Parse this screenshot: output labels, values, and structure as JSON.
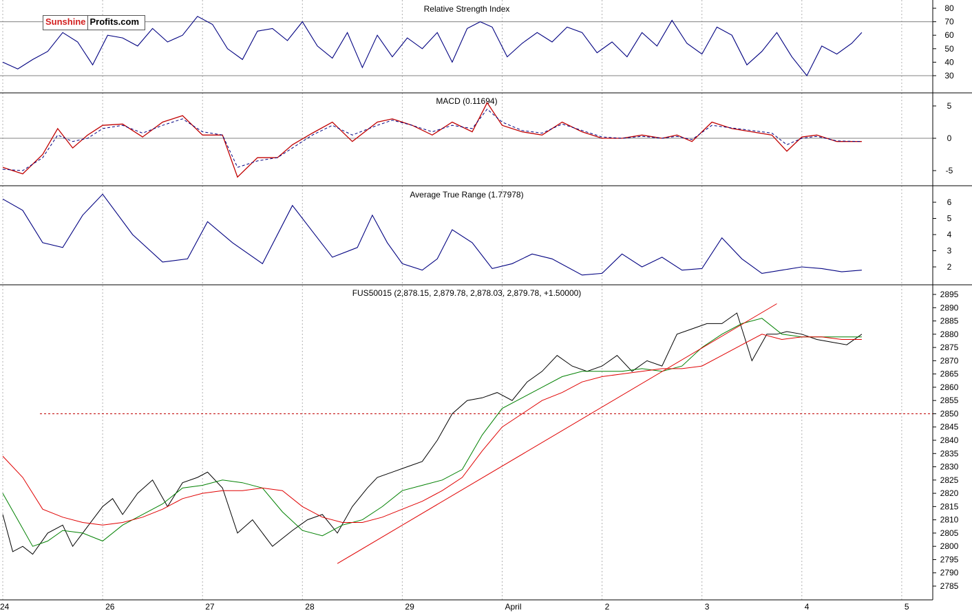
{
  "logo": {
    "part1": "Sunshine",
    "part2": "Profits.com"
  },
  "chart_data": [
    {
      "type": "line",
      "title": "Relative Strength Index",
      "yticks": [
        30,
        40,
        50,
        60,
        70,
        80
      ],
      "ylim": [
        18,
        84
      ],
      "reference_lines": [
        30,
        70
      ],
      "series": [
        {
          "x": [
            0,
            0.15,
            0.3,
            0.45,
            0.6,
            0.75,
            0.9,
            1.05,
            1.2,
            1.35,
            1.5,
            1.65,
            1.8,
            1.95,
            2.1,
            2.25,
            2.4,
            2.55,
            2.7,
            2.85,
            3,
            3.15,
            3.3,
            3.45,
            3.6,
            3.75,
            3.9,
            4.05,
            4.2,
            4.35,
            4.5,
            4.65,
            4.78,
            4.9,
            5.05,
            5.2,
            5.35,
            5.5,
            5.65,
            5.8,
            5.95,
            6.1,
            6.25,
            6.4,
            6.55,
            6.7,
            6.85,
            7,
            7.15,
            7.3,
            7.45,
            7.6,
            7.75,
            7.9,
            8.05,
            8.2,
            8.35,
            8.5,
            8.6
          ],
          "values": [
            40,
            35,
            42,
            48,
            62,
            55,
            38,
            60,
            58,
            52,
            65,
            55,
            60,
            74,
            68,
            50,
            42,
            63,
            65,
            56,
            70,
            52,
            43,
            62,
            36,
            60,
            44,
            58,
            50,
            62,
            40,
            65,
            70,
            66,
            44,
            54,
            62,
            55,
            66,
            62,
            47,
            55,
            44,
            62,
            52,
            71,
            54,
            46,
            66,
            60,
            38,
            48,
            62,
            44,
            30,
            52,
            46,
            54,
            62
          ]
        }
      ]
    },
    {
      "type": "line",
      "title": "MACD (0.11694)",
      "yticks": [
        -5,
        0,
        5
      ],
      "ylim": [
        -7,
        6
      ],
      "reference_lines": [
        0
      ],
      "series": [
        {
          "x": [
            0,
            0.2,
            0.4,
            0.55,
            0.7,
            0.85,
            1,
            1.2,
            1.4,
            1.6,
            1.8,
            2,
            2.2,
            2.35,
            2.55,
            2.75,
            2.9,
            3.1,
            3.3,
            3.5,
            3.75,
            3.9,
            4.1,
            4.3,
            4.5,
            4.7,
            4.85,
            5,
            5.2,
            5.4,
            5.6,
            5.8,
            6,
            6.2,
            6.4,
            6.6,
            6.75,
            6.9,
            7.1,
            7.3,
            7.5,
            7.7,
            7.85,
            8,
            8.15,
            8.35,
            8.6
          ],
          "values": [
            -4.5,
            -5.5,
            -2.5,
            1.5,
            -1.5,
            0.5,
            2,
            2.2,
            0.2,
            2.5,
            3.5,
            0.5,
            0.5,
            -6,
            -3,
            -3,
            -1,
            0.8,
            2.5,
            -0.5,
            2.5,
            3,
            2,
            0.5,
            2.5,
            1,
            5.5,
            2,
            1,
            0.5,
            2.5,
            1,
            0,
            0,
            0.5,
            0,
            0.5,
            -0.5,
            2.5,
            1.5,
            1,
            0.5,
            -2,
            0.2,
            0.5,
            -0.5,
            -0.5
          ]
        },
        {
          "x": [
            0,
            0.2,
            0.4,
            0.55,
            0.7,
            0.85,
            1,
            1.2,
            1.4,
            1.6,
            1.8,
            2,
            2.2,
            2.35,
            2.55,
            2.75,
            2.9,
            3.1,
            3.3,
            3.5,
            3.75,
            3.9,
            4.1,
            4.3,
            4.5,
            4.7,
            4.85,
            5,
            5.2,
            5.4,
            5.6,
            5.8,
            6,
            6.2,
            6.4,
            6.6,
            6.75,
            6.9,
            7.1,
            7.3,
            7.5,
            7.7,
            7.85,
            8,
            8.15,
            8.35,
            8.6
          ],
          "values": [
            -4.8,
            -5,
            -3,
            0.5,
            -0.5,
            0,
            1.5,
            2,
            0.8,
            2,
            3,
            1,
            0.5,
            -4.5,
            -3.5,
            -3,
            -1.5,
            0.5,
            2,
            0.5,
            2,
            2.8,
            2,
            1,
            2,
            1.5,
            4.5,
            2.5,
            1.2,
            0.8,
            2.2,
            1.2,
            0.2,
            0,
            0.3,
            0,
            0.3,
            -0.2,
            2,
            1.6,
            1.2,
            0.8,
            -1,
            0,
            0.3,
            -0.4,
            -0.5
          ]
        }
      ]
    },
    {
      "type": "line",
      "title": "Average True Range (1.77978)",
      "yticks": [
        2,
        3,
        4,
        5,
        6
      ],
      "ylim": [
        1,
        6.9
      ],
      "series": [
        {
          "x": [
            0,
            0.2,
            0.4,
            0.6,
            0.8,
            1,
            1.3,
            1.6,
            1.85,
            2.05,
            2.3,
            2.6,
            2.9,
            3.1,
            3.3,
            3.55,
            3.7,
            3.85,
            4,
            4.2,
            4.35,
            4.5,
            4.7,
            4.9,
            5.1,
            5.3,
            5.5,
            5.8,
            6,
            6.2,
            6.4,
            6.6,
            6.8,
            7,
            7.2,
            7.4,
            7.6,
            7.8,
            8,
            8.2,
            8.4,
            8.6
          ],
          "values": [
            6.2,
            5.5,
            3.5,
            3.2,
            5.2,
            6.5,
            4,
            2.3,
            2.5,
            4.8,
            3.5,
            2.2,
            5.8,
            4.2,
            2.6,
            3.2,
            5.2,
            3.5,
            2.2,
            1.8,
            2.5,
            4.3,
            3.5,
            1.9,
            2.2,
            2.8,
            2.5,
            1.5,
            1.6,
            2.8,
            2,
            2.6,
            1.8,
            1.9,
            3.8,
            2.5,
            1.6,
            1.8,
            2,
            1.9,
            1.7,
            1.8
          ]
        }
      ]
    },
    {
      "type": "line",
      "title": "FUS50015 (2,878.15, 2,879.78, 2,878.03, 2,879.78, +1.50000)",
      "categories": [
        "26",
        "27",
        "28",
        "29",
        "April",
        "2",
        "3",
        "4",
        "5"
      ],
      "yticks": [
        2785,
        2790,
        2795,
        2800,
        2805,
        2810,
        2815,
        2820,
        2825,
        2830,
        2835,
        2840,
        2845,
        2850,
        2855,
        2860,
        2865,
        2870,
        2875,
        2880,
        2885,
        2890,
        2895
      ],
      "ylim": [
        2780.8,
        2898
      ],
      "horizontal_line": 2850,
      "series": [
        {
          "x": [
            0,
            0.1,
            0.2,
            0.3,
            0.45,
            0.6,
            0.7,
            0.8,
            0.9,
            1,
            1.1,
            1.2,
            1.35,
            1.5,
            1.65,
            1.8,
            1.95,
            2.05,
            2.2,
            2.35,
            2.5,
            2.7,
            2.9,
            3.05,
            3.2,
            3.35,
            3.5,
            3.65,
            3.75,
            3.9,
            4.05,
            4.2,
            4.35,
            4.5,
            4.65,
            4.8,
            4.95,
            5.1,
            5.25,
            5.4,
            5.55,
            5.7,
            5.85,
            6,
            6.15,
            6.3,
            6.45,
            6.6,
            6.75,
            6.9,
            7.05,
            7.2,
            7.35,
            7.5,
            7.65,
            7.75,
            7.85,
            8,
            8.15,
            8.3,
            8.45,
            8.6
          ],
          "values": [
            2812,
            2798,
            2800,
            2797,
            2805,
            2808,
            2800,
            2805,
            2810,
            2815,
            2818,
            2812,
            2820,
            2825,
            2815,
            2824,
            2826,
            2828,
            2822,
            2805,
            2810,
            2800,
            2806,
            2810,
            2812,
            2805,
            2815,
            2822,
            2826,
            2828,
            2830,
            2832,
            2840,
            2850,
            2855,
            2856,
            2858,
            2855,
            2862,
            2866,
            2872,
            2868,
            2866,
            2868,
            2872,
            2866,
            2870,
            2868,
            2880,
            2882,
            2884,
            2884,
            2888,
            2870,
            2880,
            2880,
            2881,
            2880,
            2878,
            2877,
            2876,
            2880
          ]
        },
        {
          "x": [
            0,
            0.15,
            0.3,
            0.45,
            0.6,
            0.8,
            1,
            1.2,
            1.4,
            1.6,
            1.8,
            2,
            2.2,
            2.4,
            2.6,
            2.8,
            3,
            3.2,
            3.4,
            3.6,
            3.8,
            4,
            4.2,
            4.4,
            4.6,
            4.8,
            5,
            5.2,
            5.4,
            5.6,
            5.8,
            6,
            6.2,
            6.4,
            6.6,
            6.8,
            7,
            7.2,
            7.4,
            7.6,
            7.8,
            8,
            8.2,
            8.4,
            8.6
          ],
          "values": [
            2820,
            2810,
            2800,
            2802,
            2806,
            2805,
            2802,
            2808,
            2812,
            2816,
            2822,
            2823,
            2825,
            2824,
            2822,
            2813,
            2806,
            2804,
            2808,
            2810,
            2815,
            2821,
            2823,
            2825,
            2829,
            2842,
            2852,
            2856,
            2860,
            2864,
            2866,
            2866,
            2866,
            2867,
            2866,
            2868,
            2875,
            2880,
            2884,
            2886,
            2880,
            2879,
            2879,
            2879,
            2879
          ]
        },
        {
          "x": [
            0,
            0.2,
            0.4,
            0.6,
            0.8,
            1,
            1.2,
            1.4,
            1.6,
            1.8,
            2,
            2.2,
            2.4,
            2.6,
            2.8,
            3,
            3.2,
            3.4,
            3.6,
            3.8,
            4,
            4.2,
            4.4,
            4.6,
            4.8,
            5,
            5.2,
            5.4,
            5.6,
            5.8,
            6,
            6.2,
            6.4,
            6.6,
            6.8,
            7,
            7.2,
            7.4,
            7.6,
            7.8,
            8,
            8.2,
            8.4,
            8.6
          ],
          "values": [
            2834,
            2826,
            2814,
            2811,
            2809,
            2808,
            2809,
            2811,
            2814,
            2818,
            2820,
            2821,
            2821,
            2822,
            2821,
            2815,
            2811,
            2809,
            2809,
            2811,
            2814,
            2817,
            2821,
            2826,
            2836,
            2845,
            2850,
            2855,
            2858,
            2862,
            2864,
            2865,
            2866,
            2867,
            2867,
            2868,
            2872,
            2876,
            2880,
            2878,
            2879,
            2879,
            2878,
            2878
          ]
        },
        {
          "x": [
            3.35,
            7.75
          ],
          "values": [
            2793.5,
            2891.5
          ]
        }
      ]
    }
  ]
}
